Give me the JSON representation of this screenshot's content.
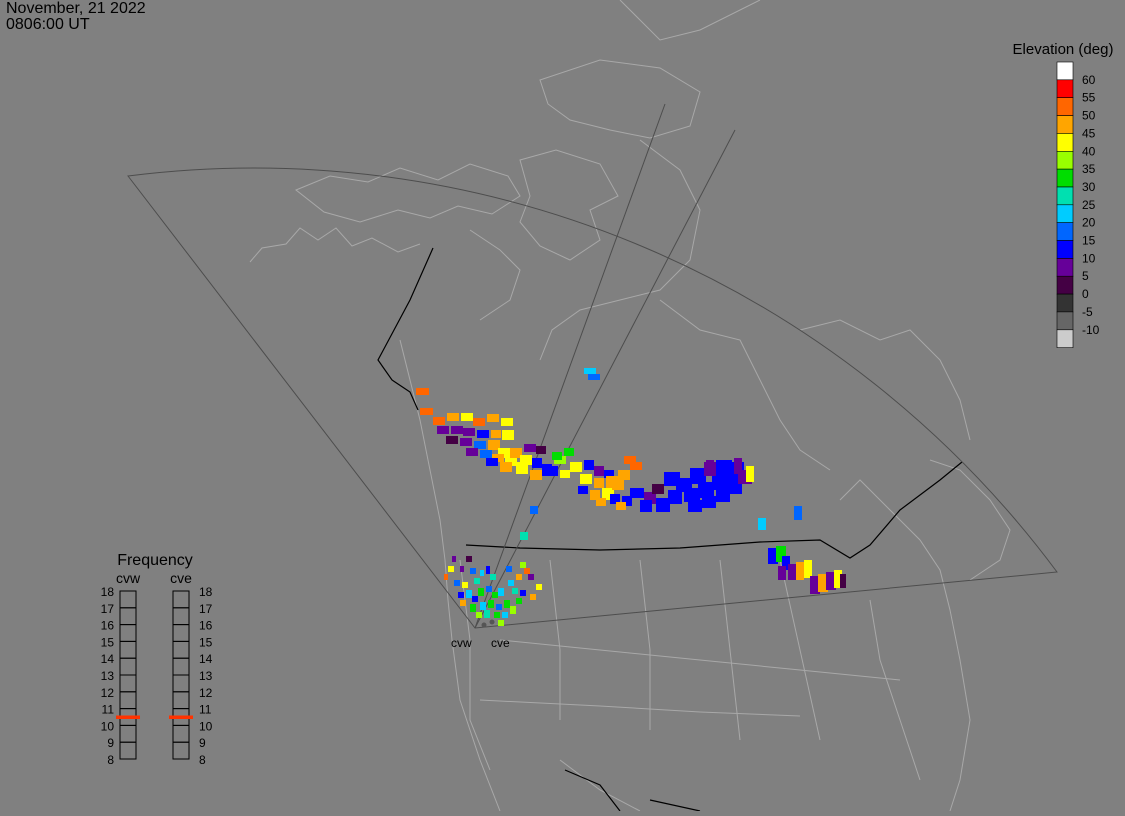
{
  "header": {
    "date": "November, 21 2022",
    "time": "0806:00 UT"
  },
  "legend": {
    "title": "Elevation (deg)",
    "entries": [
      {
        "label": "60",
        "color": "#ffffff"
      },
      {
        "label": "55",
        "color": "#ff0000"
      },
      {
        "label": "50",
        "color": "#ff6600"
      },
      {
        "label": "45",
        "color": "#ffa500"
      },
      {
        "label": "40",
        "color": "#ffff00"
      },
      {
        "label": "35",
        "color": "#99ff00"
      },
      {
        "label": "30",
        "color": "#00dd00"
      },
      {
        "label": "25",
        "color": "#00e0b0"
      },
      {
        "label": "20",
        "color": "#00ccff"
      },
      {
        "label": "15",
        "color": "#0066ff"
      },
      {
        "label": "10",
        "color": "#0000ff"
      },
      {
        "label": "5",
        "color": "#660099"
      },
      {
        "label": "0",
        "color": "#440044"
      },
      {
        "label": "-5",
        "color": "#333333"
      },
      {
        "label": "-10",
        "color": "#666666"
      },
      {
        "label": "",
        "color": "#cccccc"
      }
    ]
  },
  "frequency": {
    "title": "Frequency",
    "radars": [
      {
        "name": "cvw",
        "active": "11"
      },
      {
        "name": "cve",
        "active": "11"
      }
    ],
    "levels": [
      "18",
      "17",
      "16",
      "15",
      "14",
      "13",
      "12",
      "11",
      "10",
      "9",
      "8"
    ],
    "marker_color": "#ff3300"
  },
  "map": {
    "radar_sites": [
      {
        "name": "cvw"
      },
      {
        "name": "cve"
      }
    ],
    "colors": {
      "background": "#808080",
      "coastline": "#a8a8a8",
      "border": "#000000",
      "fov": "#4d4d4d"
    }
  }
}
